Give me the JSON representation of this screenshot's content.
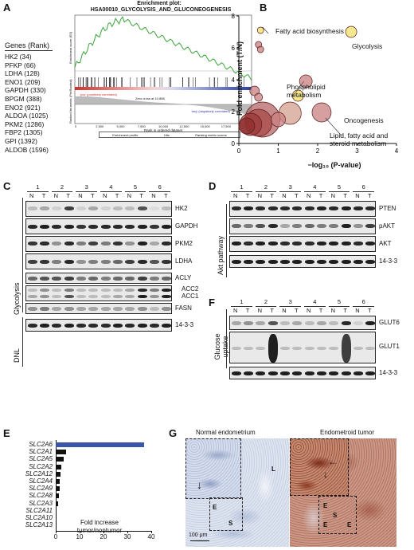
{
  "panelA": {
    "label": "A",
    "genes_title": "Genes (Rank)",
    "genes": [
      "HK2 (34)",
      "PFKP (66)",
      "LDHA (128)",
      "ENO1 (209)",
      "GAPDH (330)",
      "BPGM (388)",
      "ENO2 (921)",
      "ALDOA (1025)",
      "PKM2 (1286)",
      "FBP2 (1305)",
      "GPI (1392)",
      "ALDOB (1596)"
    ],
    "plot_title_1": "Enrichment plot:",
    "plot_title_2": "HSA00010_GLYCOLYSIS_AND_GLUCONEOGENESIS",
    "ylabel_top": "Enrichment score (ES)",
    "ylabel_bottom": "Ranked list metric (PreRanked)",
    "xlabel": "Rank in ordered dataset",
    "pos_label": "'pos' (positively correlated)",
    "neg_label": "'neg' (negatively correlated)",
    "zero_cross": "Zero cross at 10,888",
    "xticks": [
      "0",
      "2,500",
      "5,000",
      "7,500",
      "10,000",
      "12,500",
      "15,000",
      "17,500",
      "20,000"
    ],
    "legend": [
      "Enrichment profile",
      "Hits",
      "Ranking metric scores"
    ]
  },
  "panelB": {
    "label": "B",
    "chart_data": {
      "type": "scatter",
      "xlabel": "−log₁₀ (P-value)",
      "ylabel": "Fold enrichment (T/N)",
      "xlim": [
        0,
        4
      ],
      "ylim": [
        0,
        8
      ],
      "xticks": [
        "0",
        "1",
        "2",
        "3",
        "4"
      ],
      "yticks": [
        "0",
        "2",
        "4",
        "6",
        "8"
      ],
      "annotations": [
        "Fatty acid biosynthesis",
        "Glycolysis",
        "Phospholipid metabolism",
        "Oncogenesis",
        "Lipid, fatty acid and steroid metabolism"
      ],
      "points": [
        {
          "x": 0.55,
          "y": 7.1,
          "size": 4,
          "color": "#f2e06a"
        },
        {
          "x": 2.85,
          "y": 7.0,
          "size": 7,
          "color": "#f2e06a"
        },
        {
          "x": 0.5,
          "y": 6.2,
          "size": 4,
          "color": "#c98080"
        },
        {
          "x": 0.55,
          "y": 5.9,
          "size": 4,
          "color": "#c98080"
        },
        {
          "x": 1.7,
          "y": 3.9,
          "size": 8,
          "color": "#c98080"
        },
        {
          "x": 1.5,
          "y": 3.0,
          "size": 7,
          "color": "#f2e06a"
        },
        {
          "x": 2.1,
          "y": 1.95,
          "size": 12,
          "color": "#c98080"
        },
        {
          "x": 0.4,
          "y": 3.3,
          "size": 6,
          "color": "#c98080"
        },
        {
          "x": 0.5,
          "y": 2.9,
          "size": 5,
          "color": "#c98080"
        },
        {
          "x": 1.3,
          "y": 1.9,
          "size": 14,
          "color": "#d4a090"
        },
        {
          "x": 0.6,
          "y": 1.5,
          "size": 22,
          "color": "#b56565"
        },
        {
          "x": 0.5,
          "y": 1.3,
          "size": 17,
          "color": "#a84a4a"
        },
        {
          "x": 0.3,
          "y": 1.2,
          "size": 14,
          "color": "#9c3b3b"
        },
        {
          "x": 0.2,
          "y": 1.1,
          "size": 10,
          "color": "#8e2e2e"
        },
        {
          "x": 1.0,
          "y": 1.5,
          "size": 9,
          "color": "#c98080"
        }
      ]
    }
  },
  "panelC": {
    "label": "C",
    "lanes": [
      "1",
      "2",
      "3",
      "4",
      "5",
      "6"
    ],
    "nt": [
      "N",
      "T"
    ],
    "group1": "Glycolysis",
    "group2": "DNL",
    "proteins": [
      "HK2",
      "GAPDH",
      "PKM2",
      "LDHA",
      "ACLY",
      "ACC2",
      "ACC1",
      "FASN",
      "14-3-3"
    ]
  },
  "panelD": {
    "label": "D",
    "lanes": [
      "1",
      "2",
      "3",
      "4",
      "5",
      "6"
    ],
    "nt": [
      "N",
      "T"
    ],
    "group": "Akt pathway",
    "proteins": [
      "PTEN",
      "pAKT",
      "AKT",
      "14-3-3"
    ]
  },
  "panelF": {
    "label": "F",
    "lanes": [
      "1",
      "2",
      "3",
      "4",
      "5",
      "6"
    ],
    "nt": [
      "N",
      "T"
    ],
    "group": "Glucose uptake",
    "proteins": [
      "GLUT6",
      "GLUT1",
      "14-3-3"
    ]
  },
  "panelE": {
    "label": "E",
    "xlabel_1": "Fold increase",
    "xlabel_2": "tumor/nontumor",
    "chart_data": {
      "type": "bar",
      "orientation": "horizontal",
      "categories": [
        "SLC2A6",
        "SLC2A1",
        "SLC2A5",
        "SLC2A2",
        "SLC2A12",
        "SLC2A4",
        "SLC2A9",
        "SLC2A8",
        "SLC2A3",
        "SLC2A11",
        "SLC2A10",
        "SLC2A13"
      ],
      "values": [
        37,
        4.2,
        3.3,
        2.3,
        2.0,
        1.7,
        1.5,
        1.3,
        0.9,
        0.3,
        0.1,
        0.1
      ],
      "xlim": [
        0,
        40
      ],
      "xticks": [
        "0",
        "10",
        "20",
        "30",
        "40"
      ],
      "highlight_color": "#3a56a8",
      "bar_color": "#111111"
    }
  },
  "panelG": {
    "label": "G",
    "left_title": "Normal endometrium",
    "right_title": "Endometroid tumor",
    "scale": "100 μm",
    "left_marks": [
      "L",
      "E",
      "S"
    ],
    "right_marks": [
      "E",
      "S",
      "E",
      "E"
    ]
  }
}
